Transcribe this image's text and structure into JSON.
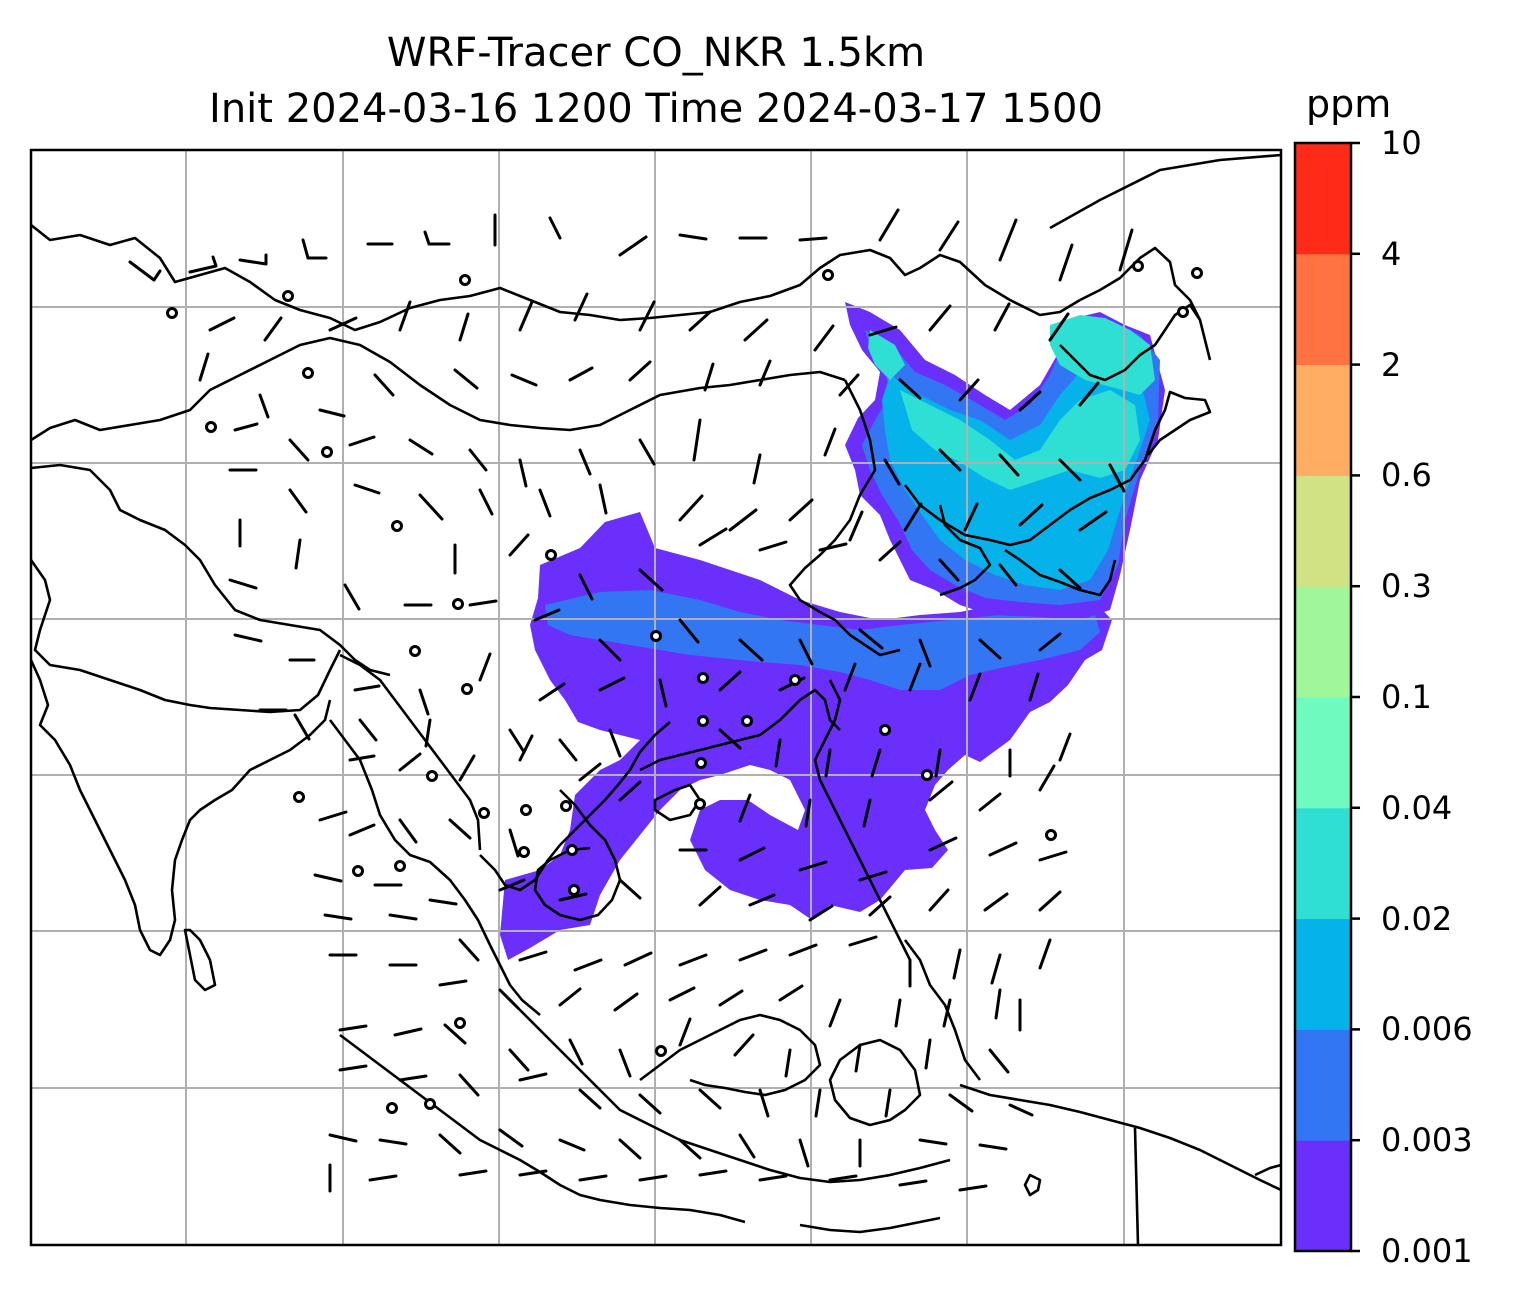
{
  "title": {
    "line1": "WRF-Tracer CO_NKR 1.5km",
    "line2": "Init 2024-03-16 1200 Time 2024-03-17 1500"
  },
  "colorbar": {
    "units": "ppm",
    "tick_labels": [
      "0.001",
      "0.003",
      "0.006",
      "0.02",
      "0.04",
      "0.1",
      "0.3",
      "0.6",
      "2",
      "4",
      "10"
    ],
    "colors": [
      "#6a2ffb",
      "#3376f4",
      "#06b2ea",
      "#30dfd3",
      "#6ffbc0",
      "#9ff799",
      "#d0e283",
      "#ffad62",
      "#ff7241",
      "#ff2a17"
    ]
  },
  "map": {
    "gridlines": true,
    "field": "CO_NKR tracer concentration at 1.5km with wind barbs"
  }
}
